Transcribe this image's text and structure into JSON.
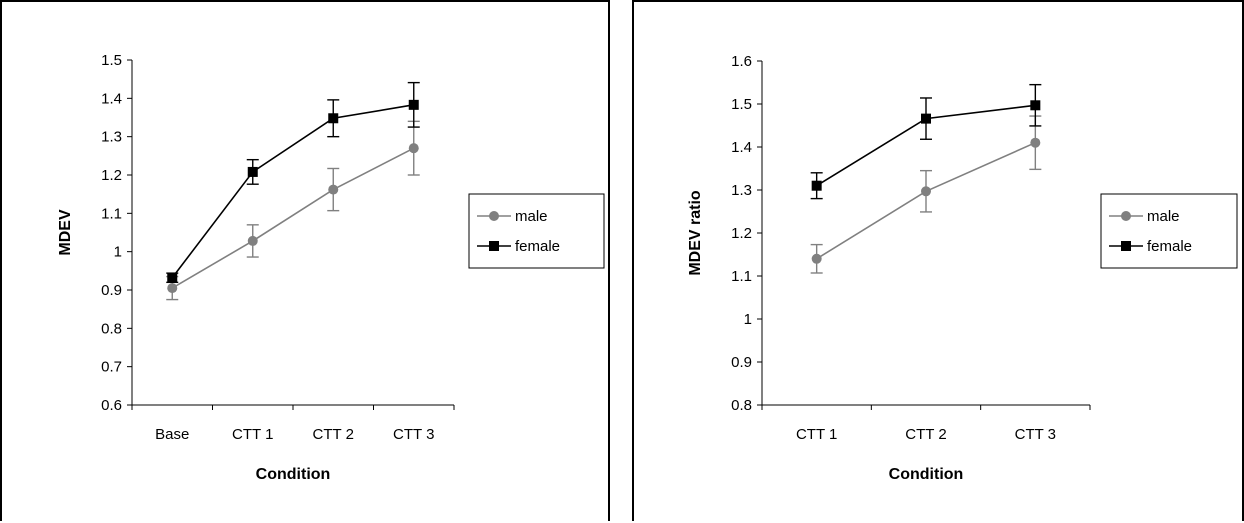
{
  "chart_data": [
    {
      "type": "line",
      "xlabel": "Condition",
      "ylabel": "MDEV",
      "categories": [
        "Base",
        "CTT 1",
        "CTT 2",
        "CTT 3"
      ],
      "ylim": [
        0.6,
        1.5
      ],
      "yticks": [
        "0.6",
        "0.7",
        "0.8",
        "0.9",
        "1",
        "1.1",
        "1.2",
        "1.3",
        "1.4",
        "1.5"
      ],
      "grid": false,
      "legend_position": "right",
      "series": [
        {
          "name": "male",
          "marker": "circle",
          "color": "#808080",
          "values": [
            0.905,
            1.028,
            1.162,
            1.27
          ],
          "error": [
            0.03,
            0.042,
            0.055,
            0.07
          ]
        },
        {
          "name": "female",
          "marker": "square",
          "color": "#000000",
          "values": [
            0.932,
            1.208,
            1.348,
            1.383
          ],
          "error": [
            0.012,
            0.032,
            0.048,
            0.058
          ]
        }
      ]
    },
    {
      "type": "line",
      "xlabel": "Condition",
      "ylabel": "MDEV ratio",
      "categories": [
        "CTT 1",
        "CTT 2",
        "CTT 3"
      ],
      "ylim": [
        0.8,
        1.6
      ],
      "yticks": [
        "0.8",
        "0.9",
        "1",
        "1.1",
        "1.2",
        "1.3",
        "1.4",
        "1.5",
        "1.6"
      ],
      "grid": false,
      "legend_position": "right",
      "series": [
        {
          "name": "male",
          "marker": "circle",
          "color": "#808080",
          "values": [
            1.14,
            1.297,
            1.41
          ],
          "error": [
            0.033,
            0.048,
            0.062
          ]
        },
        {
          "name": "female",
          "marker": "square",
          "color": "#000000",
          "values": [
            1.31,
            1.466,
            1.497
          ],
          "error": [
            0.03,
            0.048,
            0.048
          ]
        }
      ]
    }
  ]
}
